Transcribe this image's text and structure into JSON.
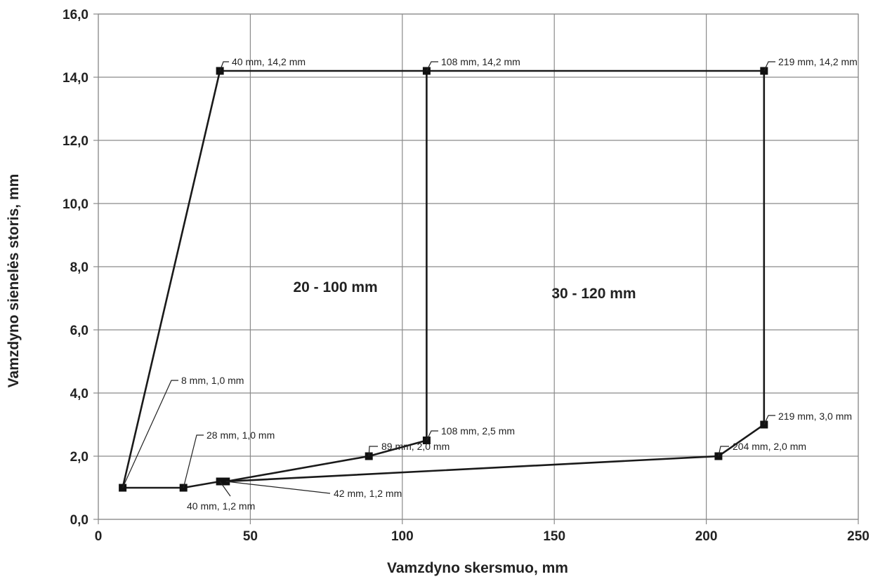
{
  "chart_data": {
    "type": "line",
    "title": "",
    "xlabel": "Vamzdyno skersmuo, mm",
    "ylabel": "Vamzdyno sienelės storis, mm",
    "xlim": [
      0,
      250
    ],
    "ylim": [
      0,
      16
    ],
    "x_ticks": [
      0,
      50,
      100,
      150,
      200,
      250
    ],
    "x_tick_labels": [
      "0",
      "50",
      "100",
      "150",
      "200",
      "250"
    ],
    "y_ticks": [
      0,
      2,
      4,
      6,
      8,
      10,
      12,
      14,
      16
    ],
    "y_tick_labels": [
      "0,0",
      "2,0",
      "4,0",
      "6,0",
      "8,0",
      "10,0",
      "12,0",
      "14,0",
      "16,0"
    ],
    "grid": true,
    "legend": "none",
    "series": [
      {
        "x": [
          8,
          40,
          108,
          108,
          89,
          42,
          40,
          28,
          8
        ],
        "y": [
          1.0,
          14.2,
          14.2,
          2.5,
          2.0,
          1.2,
          1.2,
          1.0,
          1.0
        ]
      },
      {
        "x": [
          108,
          219,
          219,
          204,
          42
        ],
        "y": [
          14.2,
          14.2,
          3.0,
          2.0,
          1.2
        ]
      }
    ],
    "point_labels": [
      {
        "x": 40,
        "y": 14.2,
        "text": "40 mm, 14,2 mm"
      },
      {
        "x": 108,
        "y": 14.2,
        "text": "108 mm, 14,2 mm"
      },
      {
        "x": 219,
        "y": 14.2,
        "text": "219 mm, 14,2 mm"
      },
      {
        "x": 8,
        "y": 1.0,
        "text": "8 mm, 1,0 mm"
      },
      {
        "x": 28,
        "y": 1.0,
        "text": "28 mm, 1,0 mm"
      },
      {
        "x": 40,
        "y": 1.2,
        "text": "40 mm, 1,2 mm"
      },
      {
        "x": 42,
        "y": 1.2,
        "text": "42 mm, 1,2 mm"
      },
      {
        "x": 89,
        "y": 2.0,
        "text": "89 mm, 2,0 mm"
      },
      {
        "x": 108,
        "y": 2.5,
        "text": "108 mm, 2,5 mm"
      },
      {
        "x": 204,
        "y": 2.0,
        "text": "204 mm, 2,0 mm"
      },
      {
        "x": 219,
        "y": 3.0,
        "text": "219 mm, 3,0 mm"
      }
    ],
    "region_labels": [
      {
        "x": 78,
        "y": 7.2,
        "text": "20 - 100 mm"
      },
      {
        "x": 163,
        "y": 7.0,
        "text": "30 - 120 mm"
      }
    ]
  }
}
